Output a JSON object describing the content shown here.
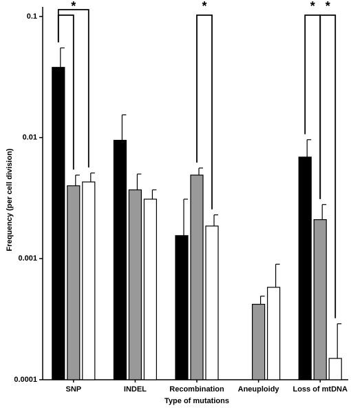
{
  "chart_data": {
    "type": "bar",
    "x_label": "Type of mutations",
    "y_label": "Frequency (per cell division)",
    "categories": [
      "SNP",
      "INDEL",
      "Recombination",
      "Aneuploidy",
      "Loss of mtDNA"
    ],
    "series": [
      {
        "color": "#000000",
        "values": [
          0.038,
          0.0095,
          0.00155,
          null,
          0.0069
        ],
        "errors": [
          0.017,
          0.0059,
          0.00155,
          null,
          0.0027
        ]
      },
      {
        "color": "#999999",
        "values": [
          0.004,
          0.0037,
          0.0049,
          0.00042,
          0.0021
        ],
        "errors": [
          0.0009,
          0.0013,
          0.0007,
          7e-05,
          0.0007
        ]
      },
      {
        "color": "#ffffff",
        "values": [
          0.0043,
          0.0031,
          0.00186,
          0.00058,
          0.00015
        ],
        "errors": [
          0.0008,
          0.0006,
          0.00044,
          0.00032,
          0.00014
        ]
      }
    ],
    "log_scale": true,
    "ylim": [
      0.0001,
      0.12
    ],
    "yticks": [
      0.0001,
      0.001,
      0.01,
      0.1
    ],
    "annotations": [
      "*",
      "*",
      "*",
      "*"
    ]
  }
}
